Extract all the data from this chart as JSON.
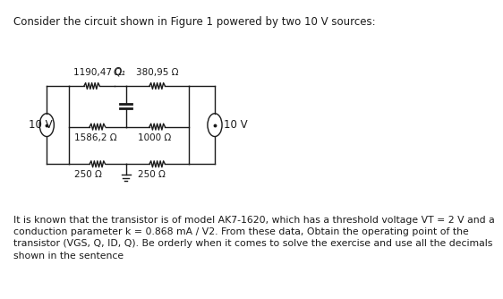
{
  "title_text": "Consider the circuit shown in Figure 1 powered by two 10 V sources:",
  "bottom_text": "It is known that the transistor is of model AK7-1620, which has a threshold voltage VT = 2 V and a\nconduction parameter k = 0.868 mA / V2. From these data, Obtain the operating point of the\ntransistor (VGS, Q, ID, Q). Be orderly when it comes to solve the exercise and use all the decimals\nshown in the sentence",
  "label_1190": "1190,47 Ω",
  "label_Q1": "Q₁",
  "label_380": "380,95 Ω",
  "label_1586": "1586,2 Ω",
  "label_1000": "1000 Ω",
  "label_250a": "250 Ω",
  "label_250b": "250 Ω",
  "label_10V_left": "10 V",
  "label_10V_right": "10 V",
  "bg_color": "#ffffff",
  "line_color": "#1a1a1a",
  "text_color": "#1a1a1a",
  "font_size_title": 8.5,
  "font_size_labels": 7.5,
  "font_size_bottom": 7.8
}
